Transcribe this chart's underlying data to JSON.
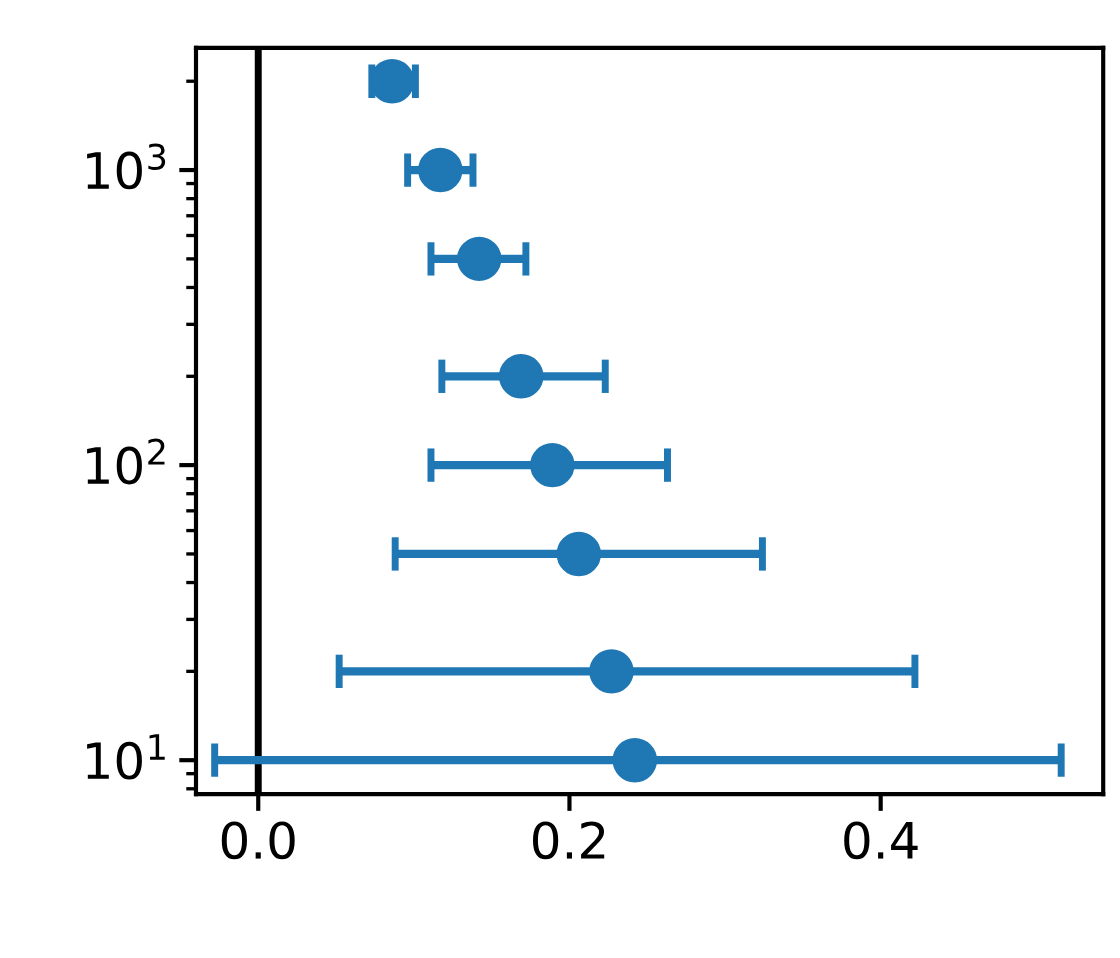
{
  "chart_data": {
    "type": "scatter",
    "x": [
      0.086,
      0.117,
      0.142,
      0.169,
      0.189,
      0.206,
      0.227,
      0.242
    ],
    "values": [
      2000,
      1000,
      500,
      200,
      100,
      50,
      20,
      10
    ],
    "xerrors": [
      [
        0.073,
        0.101
      ],
      [
        0.096,
        0.138
      ],
      [
        0.111,
        0.172
      ],
      [
        0.118,
        0.223
      ],
      [
        0.111,
        0.263
      ],
      [
        0.088,
        0.324
      ],
      [
        0.052,
        0.422
      ],
      [
        -0.028,
        0.516
      ]
    ],
    "color": "#1f77b4",
    "marker": "circle",
    "log": "y",
    "xlim": [
      -0.04,
      0.543
    ],
    "xticks": [
      {
        "value": 0,
        "label": "0.0"
      },
      0.2,
      0.4
    ],
    "ylim": [
      7.67,
      2594
    ],
    "yticks": [
      {
        "value": 10,
        "label": "10$^{1}$"
      },
      {
        "value": 100,
        "label": "10$^{2}$"
      },
      {
        "value": 1000,
        "label": "10$^{3}$"
      }
    ],
    "ref_lines": [
      {
        "axis": "x",
        "value": 0,
        "color": "#000000",
        "line_style": "solid"
      }
    ],
    "grid": false,
    "legend": false
  }
}
